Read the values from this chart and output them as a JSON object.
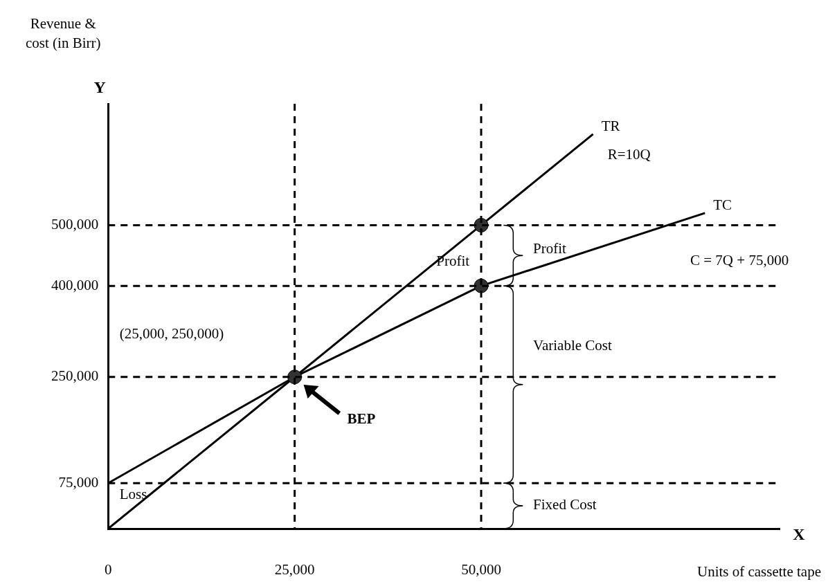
{
  "chart_data": {
    "type": "line",
    "xlabel": "Units of cassette tape",
    "ylabel": "Revenue & cost (in Birr)",
    "xlim": [
      0,
      90000
    ],
    "ylim": [
      0,
      700000
    ],
    "xticks": [
      0,
      {
        "value": 25000,
        "label": "25,000"
      },
      {
        "value": 50000,
        "label": "50,000"
      }
    ],
    "yticks": [
      {
        "value": 75000,
        "label": "75,000"
      },
      {
        "value": 250000,
        "label": "250,000"
      },
      {
        "value": 400000,
        "label": "400,000"
      },
      {
        "value": 500000,
        "label": "500,000"
      }
    ],
    "grid": false,
    "legend": false,
    "marker": "none",
    "line_style": "solid",
    "series": [
      {
        "name": "TR",
        "color": "#000000",
        "x": [
          0,
          25000,
          50000,
          65000
        ],
        "values": [
          0,
          250000,
          500000,
          650000
        ]
      },
      {
        "name": "TC",
        "color": "#000000",
        "x": [
          0,
          25000,
          50000,
          80000
        ],
        "values": [
          75000,
          250000,
          400000,
          520000
        ]
      },
      {
        "type": "scatter",
        "color": "#333333",
        "marker": "circle",
        "x": [
          25000,
          50000,
          50000
        ],
        "values": [
          250000,
          500000,
          400000
        ]
      }
    ],
    "ref_lines": [
      {
        "axis": "y",
        "value": 75000,
        "line_style": "dashed",
        "color": "#000000"
      },
      {
        "axis": "y",
        "value": 250000,
        "line_style": "dashed",
        "color": "#000000"
      },
      {
        "axis": "y",
        "value": 400000,
        "line_style": "dashed",
        "color": "#000000"
      },
      {
        "axis": "y",
        "value": 500000,
        "line_style": "dashed",
        "color": "#000000"
      },
      {
        "axis": "x",
        "value": 25000,
        "line_style": "dashed",
        "color": "#000000"
      },
      {
        "axis": "x",
        "value": 50000,
        "line_style": "dashed",
        "color": "#000000"
      }
    ],
    "annotations": [
      "Y",
      "X",
      "R=10Q",
      "C = 7Q + 75,000",
      {
        "text": "Profit",
        "x": 44000,
        "y": 440000
      },
      "Profit",
      "Variable Cost",
      "Fixed Cost",
      "Loss",
      "(25,000, 250,000)",
      "BEP"
    ]
  }
}
